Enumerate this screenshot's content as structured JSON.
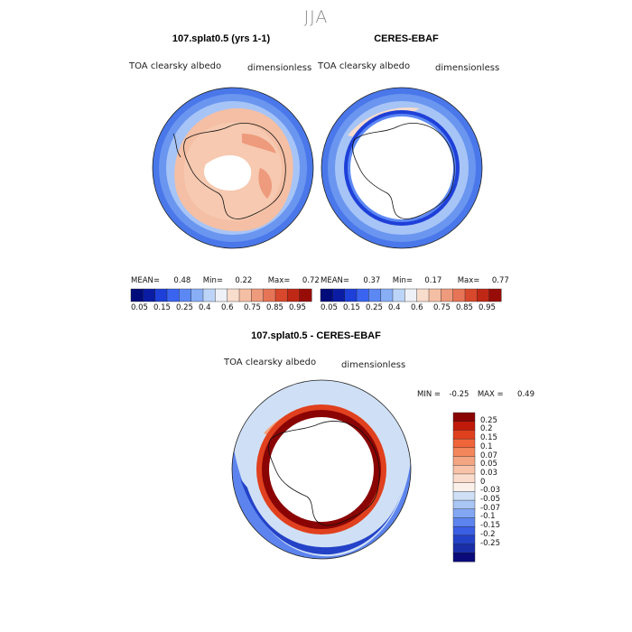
{
  "season": "JJA",
  "panels": [
    {
      "title": "107.splat0.5 (yrs 1-1)",
      "left_label": "TOA clearsky albedo",
      "right_label": "dimensionless",
      "stats": {
        "mean_label": "MEAN=",
        "mean": "0.48",
        "min_label": "Min=",
        "min": "0.22",
        "max_label": "Max=",
        "max": "0.72"
      }
    },
    {
      "title": "CERES-EBAF",
      "left_label": "TOA clearsky albedo",
      "right_label": "dimensionless",
      "stats": {
        "mean_label": "MEAN=",
        "mean": "0.37",
        "min_label": "Min=",
        "min": "0.17",
        "max_label": "Max=",
        "max": "0.77"
      }
    },
    {
      "title": "107.splat0.5 - CERES-EBAF",
      "left_label": "TOA clearsky albedo",
      "right_label": "dimensionless",
      "stats": {
        "min_label": "MIN =",
        "min": "-0.25",
        "max_label": "MAX =",
        "max": "0.49"
      }
    }
  ],
  "albedo_colorbar": {
    "colors": [
      "#000c7a",
      "#0a1ca4",
      "#1e40d8",
      "#3a64f0",
      "#5c88f4",
      "#88aef6",
      "#bcd4f8",
      "#eef2f8",
      "#f8dccc",
      "#f4bfa4",
      "#ee9a7c",
      "#e67456",
      "#d8482c",
      "#c02816",
      "#980c08"
    ],
    "tick_labels": [
      "0.05",
      "0.15",
      "0.25",
      "0.4",
      "0.6",
      "0.75",
      "0.85",
      "0.95"
    ]
  },
  "diff_colorbar": {
    "colors": [
      "#8a0404",
      "#c01a0a",
      "#e0401e",
      "#f0653a",
      "#f4865c",
      "#f4a582",
      "#f8c3a8",
      "#fadccc",
      "#fbf1ea",
      "#cfe0f6",
      "#aac6f4",
      "#82a6f2",
      "#5d84ee",
      "#3a5fe4",
      "#2442c8",
      "#1a2ea8",
      "#0a0a7a"
    ],
    "tick_labels": [
      "0.25",
      "0.2",
      "0.15",
      "0.1",
      "0.07",
      "0.05",
      "0.03",
      "0",
      "-0.03",
      "-0.05",
      "-0.07",
      "-0.1",
      "-0.15",
      "-0.2",
      "-0.25"
    ]
  }
}
